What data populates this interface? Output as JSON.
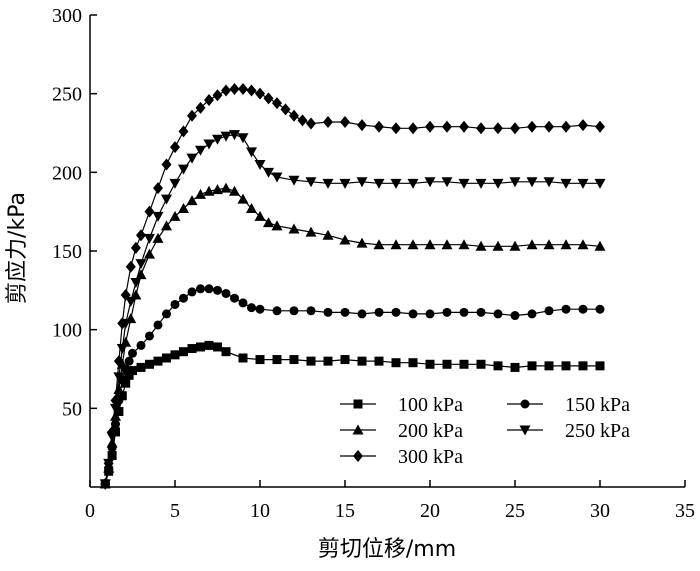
{
  "chart_data": {
    "type": "line",
    "xlabel": "剪切位移/mm",
    "ylabel": "剪应力/kPa",
    "xlim": [
      0,
      35
    ],
    "ylim": [
      0,
      300
    ],
    "xticks": [
      "0",
      "5",
      "10",
      "15",
      "20",
      "25",
      "30",
      "35"
    ],
    "yticks": [
      "50",
      "100",
      "150",
      "200",
      "250",
      "300"
    ],
    "grid": false,
    "legend_position": "bottom-right",
    "series": [
      {
        "name": "100 kPa",
        "marker": "square",
        "points": [
          [
            0.9,
            2
          ],
          [
            1.1,
            10
          ],
          [
            1.3,
            20
          ],
          [
            1.5,
            35
          ],
          [
            1.7,
            48
          ],
          [
            1.9,
            58
          ],
          [
            2.1,
            66
          ],
          [
            2.3,
            71
          ],
          [
            2.5,
            74
          ],
          [
            3,
            76
          ],
          [
            3.5,
            78
          ],
          [
            4,
            80
          ],
          [
            4.5,
            82
          ],
          [
            5,
            84
          ],
          [
            5.5,
            86
          ],
          [
            6,
            88
          ],
          [
            6.5,
            89
          ],
          [
            7,
            90
          ],
          [
            7.5,
            89
          ],
          [
            8,
            86
          ],
          [
            9,
            82
          ],
          [
            10,
            81
          ],
          [
            11,
            81
          ],
          [
            12,
            81
          ],
          [
            13,
            80
          ],
          [
            14,
            80
          ],
          [
            15,
            81
          ],
          [
            16,
            80
          ],
          [
            17,
            80
          ],
          [
            18,
            79
          ],
          [
            19,
            79
          ],
          [
            20,
            78
          ],
          [
            21,
            78
          ],
          [
            22,
            78
          ],
          [
            23,
            78
          ],
          [
            24,
            77
          ],
          [
            25,
            76
          ],
          [
            26,
            77
          ],
          [
            27,
            77
          ],
          [
            28,
            77
          ],
          [
            29,
            77
          ],
          [
            30,
            77
          ]
        ]
      },
      {
        "name": "150 kPa",
        "marker": "circle",
        "points": [
          [
            0.9,
            2
          ],
          [
            1.1,
            12
          ],
          [
            1.3,
            25
          ],
          [
            1.5,
            40
          ],
          [
            1.7,
            55
          ],
          [
            1.9,
            68
          ],
          [
            2.1,
            75
          ],
          [
            2.3,
            80
          ],
          [
            2.5,
            85
          ],
          [
            3,
            90
          ],
          [
            3.5,
            96
          ],
          [
            4,
            103
          ],
          [
            4.5,
            110
          ],
          [
            5,
            116
          ],
          [
            5.5,
            120
          ],
          [
            6,
            124
          ],
          [
            6.5,
            126
          ],
          [
            7,
            126
          ],
          [
            7.5,
            125
          ],
          [
            8,
            123
          ],
          [
            8.5,
            120
          ],
          [
            9,
            117
          ],
          [
            9.5,
            114
          ],
          [
            10,
            113
          ],
          [
            11,
            112
          ],
          [
            12,
            112
          ],
          [
            13,
            112
          ],
          [
            14,
            111
          ],
          [
            15,
            111
          ],
          [
            16,
            110
          ],
          [
            17,
            111
          ],
          [
            18,
            111
          ],
          [
            19,
            110
          ],
          [
            20,
            110
          ],
          [
            21,
            111
          ],
          [
            22,
            111
          ],
          [
            23,
            111
          ],
          [
            24,
            110
          ],
          [
            25,
            109
          ],
          [
            26,
            110
          ],
          [
            27,
            112
          ],
          [
            28,
            113
          ],
          [
            29,
            113
          ],
          [
            30,
            113
          ]
        ]
      },
      {
        "name": "200 kPa",
        "marker": "triangle-up",
        "points": [
          [
            0.9,
            2
          ],
          [
            1.1,
            12
          ],
          [
            1.3,
            28
          ],
          [
            1.5,
            45
          ],
          [
            1.7,
            62
          ],
          [
            1.9,
            78
          ],
          [
            2.1,
            92
          ],
          [
            2.4,
            107
          ],
          [
            2.7,
            122
          ],
          [
            3,
            135
          ],
          [
            3.5,
            148
          ],
          [
            4,
            158
          ],
          [
            4.5,
            166
          ],
          [
            5,
            172
          ],
          [
            5.5,
            177
          ],
          [
            6,
            182
          ],
          [
            6.5,
            186
          ],
          [
            7,
            188
          ],
          [
            7.5,
            189
          ],
          [
            8,
            190
          ],
          [
            8.5,
            188
          ],
          [
            9,
            183
          ],
          [
            9.5,
            177
          ],
          [
            10,
            172
          ],
          [
            10.5,
            168
          ],
          [
            11,
            166
          ],
          [
            12,
            164
          ],
          [
            13,
            162
          ],
          [
            14,
            160
          ],
          [
            15,
            157
          ],
          [
            16,
            155
          ],
          [
            17,
            154
          ],
          [
            18,
            154
          ],
          [
            19,
            154
          ],
          [
            20,
            154
          ],
          [
            21,
            154
          ],
          [
            22,
            154
          ],
          [
            23,
            153
          ],
          [
            24,
            153
          ],
          [
            25,
            153
          ],
          [
            26,
            154
          ],
          [
            27,
            154
          ],
          [
            28,
            154
          ],
          [
            29,
            154
          ],
          [
            30,
            153
          ]
        ]
      },
      {
        "name": "250 kPa",
        "marker": "triangle-down",
        "points": [
          [
            0.9,
            2
          ],
          [
            1.1,
            15
          ],
          [
            1.3,
            32
          ],
          [
            1.5,
            50
          ],
          [
            1.7,
            70
          ],
          [
            1.9,
            88
          ],
          [
            2.1,
            104
          ],
          [
            2.4,
            118
          ],
          [
            2.7,
            130
          ],
          [
            3,
            142
          ],
          [
            3.5,
            158
          ],
          [
            4,
            172
          ],
          [
            4.5,
            183
          ],
          [
            5,
            193
          ],
          [
            5.5,
            202
          ],
          [
            6,
            209
          ],
          [
            6.5,
            214
          ],
          [
            7,
            218
          ],
          [
            7.5,
            221
          ],
          [
            8,
            223
          ],
          [
            8.5,
            224
          ],
          [
            9,
            222
          ],
          [
            9.5,
            213
          ],
          [
            10,
            205
          ],
          [
            10.5,
            200
          ],
          [
            11,
            197
          ],
          [
            12,
            195
          ],
          [
            13,
            194
          ],
          [
            14,
            193
          ],
          [
            15,
            193
          ],
          [
            16,
            194
          ],
          [
            17,
            193
          ],
          [
            18,
            193
          ],
          [
            19,
            193
          ],
          [
            20,
            194
          ],
          [
            21,
            194
          ],
          [
            22,
            193
          ],
          [
            23,
            193
          ],
          [
            24,
            193
          ],
          [
            25,
            194
          ],
          [
            26,
            194
          ],
          [
            27,
            194
          ],
          [
            28,
            193
          ],
          [
            29,
            193
          ],
          [
            30,
            193
          ]
        ]
      },
      {
        "name": "300 kPa",
        "marker": "diamond",
        "points": [
          [
            0.9,
            2
          ],
          [
            1.1,
            15
          ],
          [
            1.3,
            35
          ],
          [
            1.5,
            55
          ],
          [
            1.7,
            80
          ],
          [
            1.9,
            104
          ],
          [
            2.1,
            122
          ],
          [
            2.4,
            140
          ],
          [
            2.7,
            152
          ],
          [
            3,
            160
          ],
          [
            3.5,
            175
          ],
          [
            4,
            190
          ],
          [
            4.5,
            205
          ],
          [
            5,
            216
          ],
          [
            5.5,
            226
          ],
          [
            6,
            236
          ],
          [
            6.5,
            241
          ],
          [
            7,
            246
          ],
          [
            7.5,
            249
          ],
          [
            8,
            252
          ],
          [
            8.5,
            253
          ],
          [
            9,
            253
          ],
          [
            9.5,
            252
          ],
          [
            10,
            250
          ],
          [
            10.5,
            247
          ],
          [
            11,
            244
          ],
          [
            11.5,
            240
          ],
          [
            12,
            236
          ],
          [
            12.5,
            233
          ],
          [
            13,
            231
          ],
          [
            14,
            232
          ],
          [
            15,
            232
          ],
          [
            16,
            230
          ],
          [
            17,
            229
          ],
          [
            18,
            228
          ],
          [
            19,
            228
          ],
          [
            20,
            229
          ],
          [
            21,
            229
          ],
          [
            22,
            229
          ],
          [
            23,
            228
          ],
          [
            24,
            228
          ],
          [
            25,
            228
          ],
          [
            26,
            229
          ],
          [
            27,
            229
          ],
          [
            28,
            229
          ],
          [
            29,
            230
          ],
          [
            30,
            229
          ]
        ]
      }
    ]
  }
}
